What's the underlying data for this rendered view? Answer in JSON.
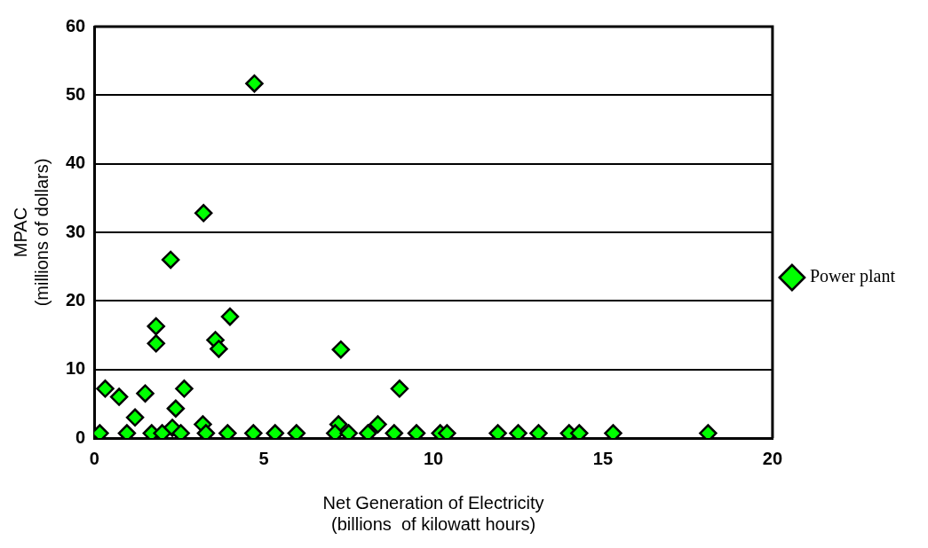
{
  "chart_data": {
    "type": "scatter",
    "xlabel": "Net Generation of Electricity\n(billions  of kilowatt hours)",
    "ylabel": "MPAC\n(millions of dollars)",
    "xlim": [
      0,
      20
    ],
    "xticks": [
      0,
      5,
      10,
      15,
      20
    ],
    "ylim": [
      0,
      60
    ],
    "yticks": [
      0,
      10,
      20,
      30,
      40,
      50,
      60
    ],
    "grid": "y",
    "legend": "right",
    "marker": "diamond",
    "series": [
      {
        "name": "Power plant",
        "color": "#00ff00",
        "x": [
          4.72,
          3.22,
          2.3,
          2.25,
          4.0,
          1.82,
          1.82,
          3.57,
          3.67,
          7.27,
          9.0,
          0.32,
          0.73,
          1.5,
          2.65,
          2.4,
          1.2,
          3.2,
          7.2,
          8.36,
          2.3,
          0.16,
          0.96,
          1.69,
          2.0,
          2.55,
          3.29,
          3.93,
          4.69,
          5.33,
          5.96,
          7.1,
          7.5,
          8.07,
          8.84,
          9.5,
          10.2,
          10.4,
          11.9,
          12.5,
          13.1,
          14.0,
          14.3,
          15.3,
          18.1
        ],
        "values": [
          51.7,
          32.8,
          null,
          26.0,
          17.7,
          16.3,
          13.8,
          14.3,
          13.0,
          12.9,
          7.2,
          7.2,
          6.0,
          6.5,
          7.2,
          4.3,
          3.0,
          2.0,
          2.0,
          2.0,
          1.5,
          0.7,
          0.7,
          0.7,
          0.7,
          0.7,
          0.7,
          0.7,
          0.7,
          0.7,
          0.7,
          0.7,
          0.7,
          0.7,
          0.7,
          0.7,
          0.7,
          0.7,
          0.7,
          0.7,
          0.7,
          0.7,
          0.7,
          0.7,
          0.7
        ]
      }
    ]
  }
}
